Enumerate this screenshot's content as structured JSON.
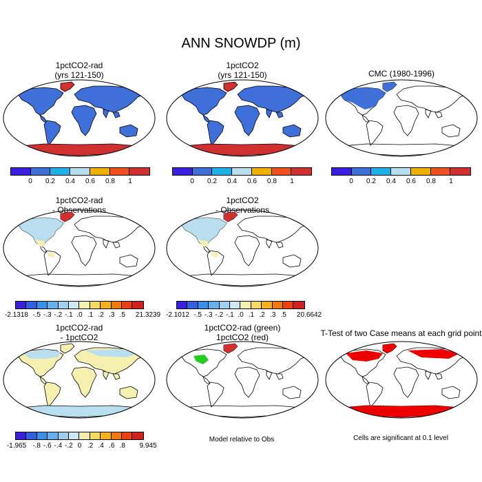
{
  "title": "ANN SNOWDP (m)",
  "panels": {
    "p1": {
      "line1": "1pctCO2-rad",
      "line2": "(yrs 121-150)"
    },
    "p2": {
      "line1": "1pctCO2",
      "line2": "(yrs 121-150)"
    },
    "p3": {
      "line1": "CMC (1980-1996)",
      "line2": ""
    },
    "p4": {
      "line1": "1pctCO2-rad",
      "line2": "- Observations"
    },
    "p5": {
      "line1": "1pctCO2",
      "line2": "- Observations"
    },
    "p7": {
      "line1": "1pctCO2-rad",
      "line2": "- 1pctCO2"
    },
    "p8": {
      "line1": "1pctCO2-rad (green)",
      "line2": "1pctCO2 (red)"
    },
    "p9": {
      "line1": "T-Test of two Case means at each grid point",
      "line2": ""
    }
  },
  "colorbars": {
    "abs": {
      "colors": [
        "#3a1fe0",
        "#3f6fd8",
        "#1fb0e8",
        "#b8def0",
        "#f0b000",
        "#f05020",
        "#d03030"
      ],
      "labels": [
        "0",
        "0.2",
        "0.4",
        "0.6",
        "0.8",
        "1"
      ]
    },
    "diff1": {
      "colors": [
        "#3a1fe0",
        "#3060e0",
        "#3a8fe8",
        "#66b0ee",
        "#a0d0f0",
        "#cfe8f5",
        "#f5f0b0",
        "#f5dc60",
        "#f5b020",
        "#f07a10",
        "#f04010",
        "#d02020"
      ],
      "labels": [
        "-2.1318",
        "-.5",
        "-.3",
        "-.2",
        "-.1",
        ".0",
        ".1",
        ".2",
        ".3",
        ".5",
        "21.3239"
      ]
    },
    "diff2": {
      "colors": [
        "#3a1fe0",
        "#3060e0",
        "#3a8fe8",
        "#66b0ee",
        "#a0d0f0",
        "#cfe8f5",
        "#f5f0b0",
        "#f5dc60",
        "#f5b020",
        "#f07a10",
        "#f04010",
        "#d02020"
      ],
      "labels": [
        "-2.1012",
        "-.5",
        "-.3",
        "-.2",
        "-.1",
        ".0",
        ".1",
        ".2",
        ".3",
        ".5",
        "20.6642"
      ]
    },
    "diff3": {
      "colors": [
        "#3a1fe0",
        "#3060e0",
        "#3a8fe8",
        "#66b0ee",
        "#a0d0f0",
        "#cfe8f5",
        "#f5f0b0",
        "#f5dc60",
        "#f5b020",
        "#f07a10",
        "#f04010",
        "#d02020"
      ],
      "labels": [
        "-1.965",
        "-.8",
        "-.6",
        "-.4",
        "-.2",
        "0",
        ".2",
        ".4",
        ".6",
        ".8",
        "9.945"
      ]
    }
  },
  "notes": {
    "model_rel": "Model relative to Obs",
    "signif": "Cells are significant at 0.1 level"
  },
  "colors": {
    "snow_blue": "#3f6fd8",
    "light_blue": "#b8def0",
    "pale_yellow": "#f5f0b0",
    "red": "#d03030",
    "green": "#22cc22",
    "sig_red": "#ee0000"
  }
}
